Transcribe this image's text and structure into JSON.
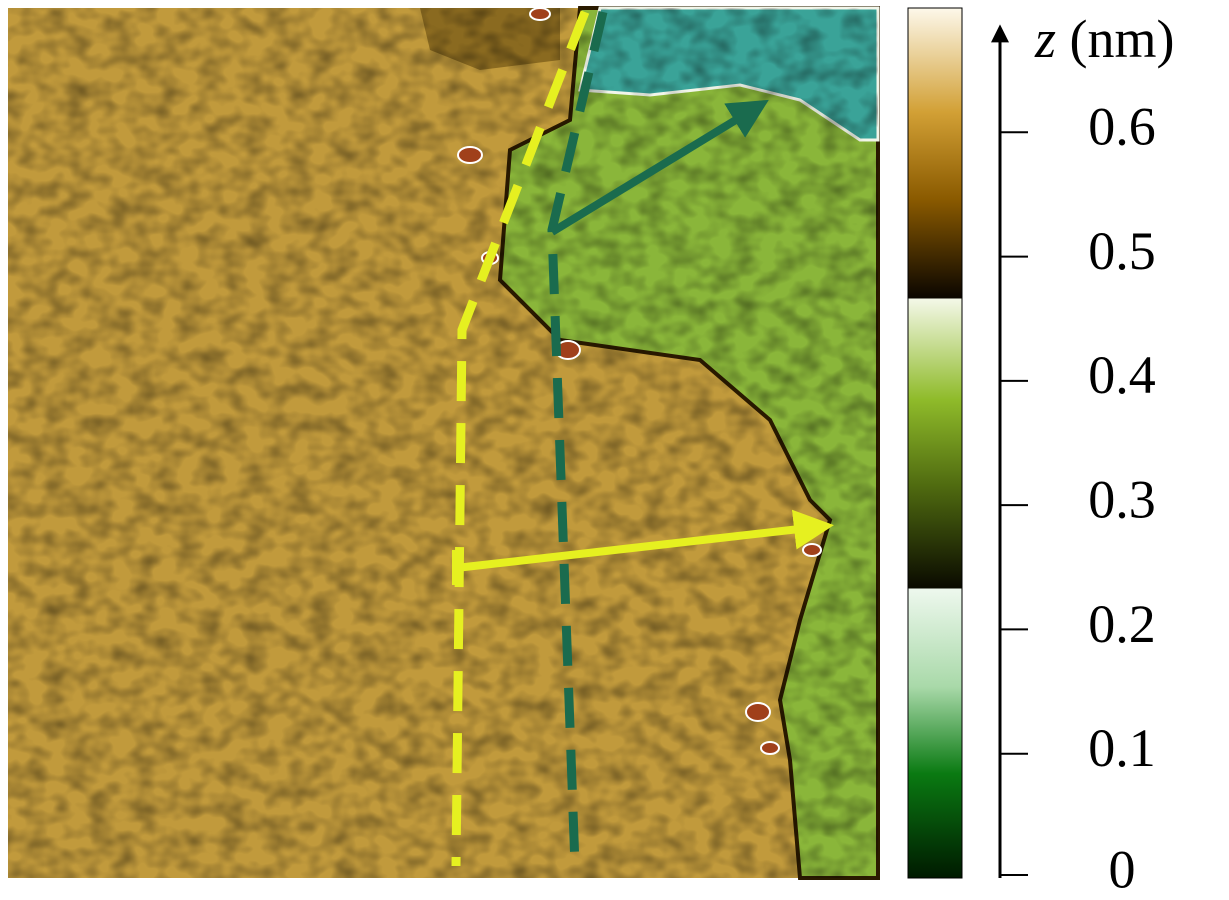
{
  "colorbar": {
    "label_symbol": "z",
    "label_unit": "(nm)",
    "lim": [
      0,
      0.7
    ],
    "ticks": [
      0,
      0.1,
      0.2,
      0.3,
      0.4,
      0.5,
      0.6
    ]
  }
}
